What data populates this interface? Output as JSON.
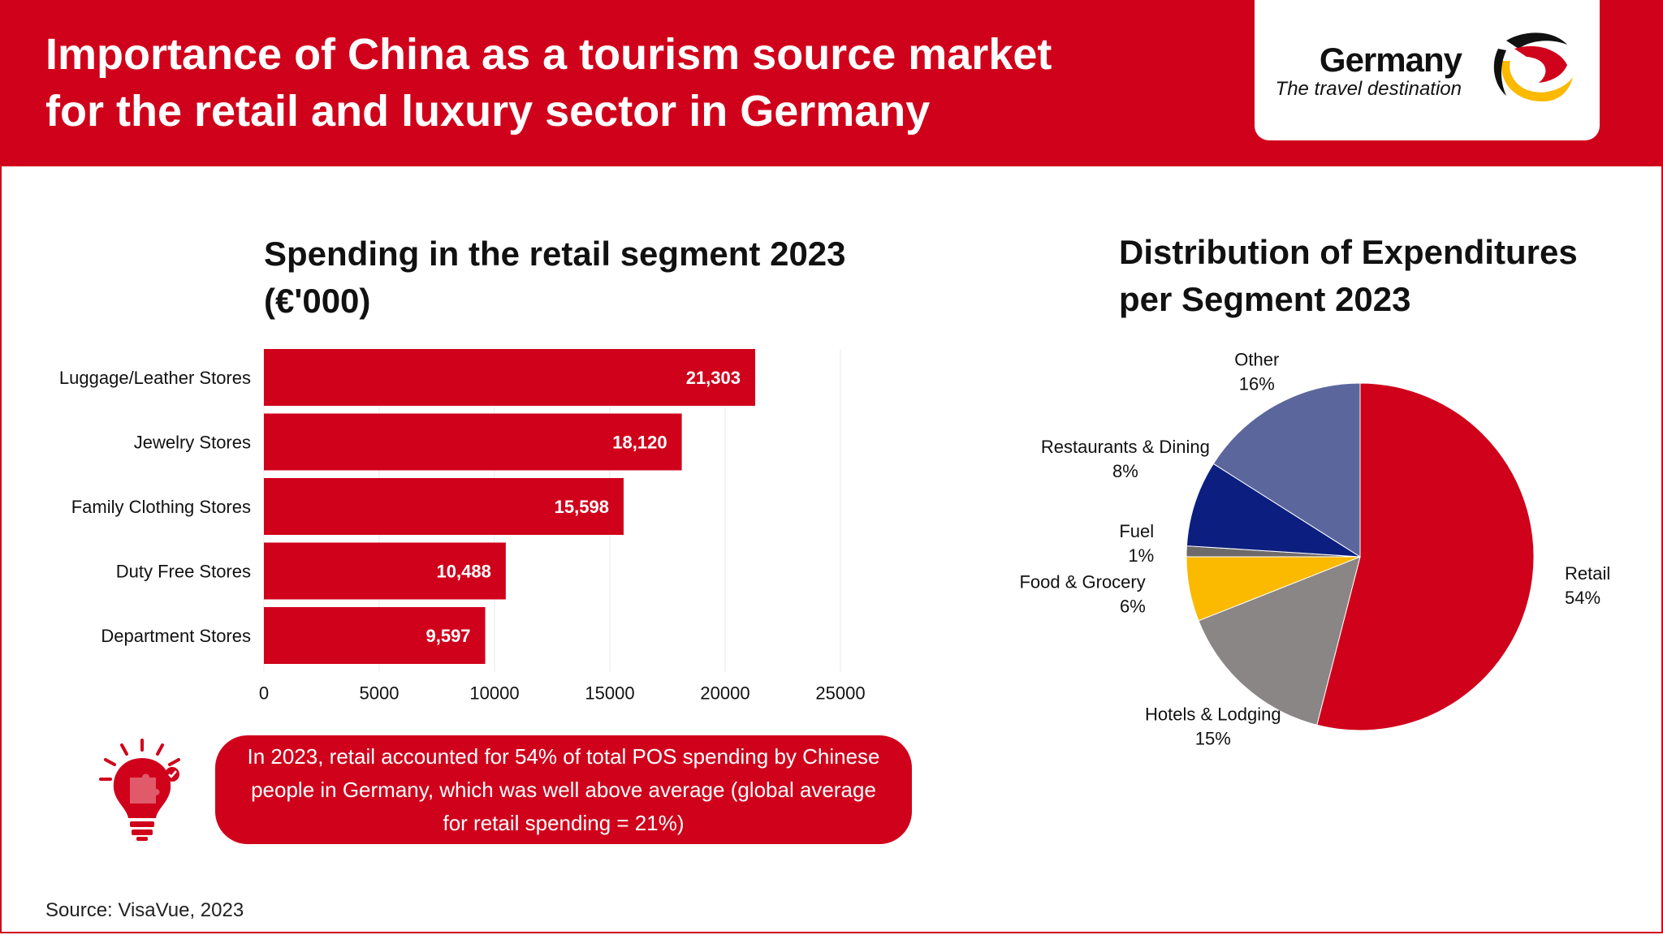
{
  "header": {
    "title_line1": "Importance of China as a tourism source market",
    "title_line2": "for the retail and luxury sector in Germany"
  },
  "logo": {
    "name": "Germany",
    "tagline": "The travel destination",
    "icon": "germany-travel-logo-icon"
  },
  "callout": {
    "text": "In 2023, retail accounted for 54% of total POS spending by Chinese people in Germany, which was well above average (global average for retail spending = 21%)",
    "icon": "lightbulb-puzzle-icon"
  },
  "source": "Source: VisaVue, 2023",
  "colors": {
    "brand_red": "#d0021b",
    "other": "#5b679c",
    "restaurants": "#0c1f80",
    "fuel": "#6f6a6a",
    "food": "#fbb900",
    "hotels": "#8a8686"
  },
  "chart_data": [
    {
      "type": "bar",
      "orientation": "horizontal",
      "title_line1": "Spending in the retail segment 2023",
      "title_line2": "(€'000)",
      "categories": [
        "Luggage/Leather Stores",
        "Jewelry Stores",
        "Family Clothing Stores",
        "Duty Free Stores",
        "Department Stores"
      ],
      "values": [
        21303,
        18120,
        15598,
        10488,
        9597
      ],
      "data_labels": [
        "21,303",
        "18,120",
        "15,598",
        "10,488",
        "9,597"
      ],
      "xlim": [
        0,
        25000
      ],
      "xticks": [
        "0",
        "5000",
        "10000",
        "15000",
        "20000",
        "25000"
      ],
      "grid": true
    },
    {
      "type": "pie",
      "title_line1": "Distribution of Expenditures",
      "title_line2": "per Segment 2023",
      "slices": [
        {
          "label": "Retail",
          "pct_label": "54%",
          "value": 54,
          "color": "#d0021b"
        },
        {
          "label": "Hotels & Lodging",
          "pct_label": "15%",
          "value": 15,
          "color": "#8a8686"
        },
        {
          "label": "Food & Grocery",
          "pct_label": "6%",
          "value": 6,
          "color": "#fbb900"
        },
        {
          "label": "Fuel",
          "pct_label": "1%",
          "value": 1,
          "color": "#6f6a6a"
        },
        {
          "label": "Restaurants & Dining",
          "pct_label": "8%",
          "value": 8,
          "color": "#0c1f80"
        },
        {
          "label": "Other",
          "pct_label": "16%",
          "value": 16,
          "color": "#5b679c"
        }
      ]
    }
  ]
}
